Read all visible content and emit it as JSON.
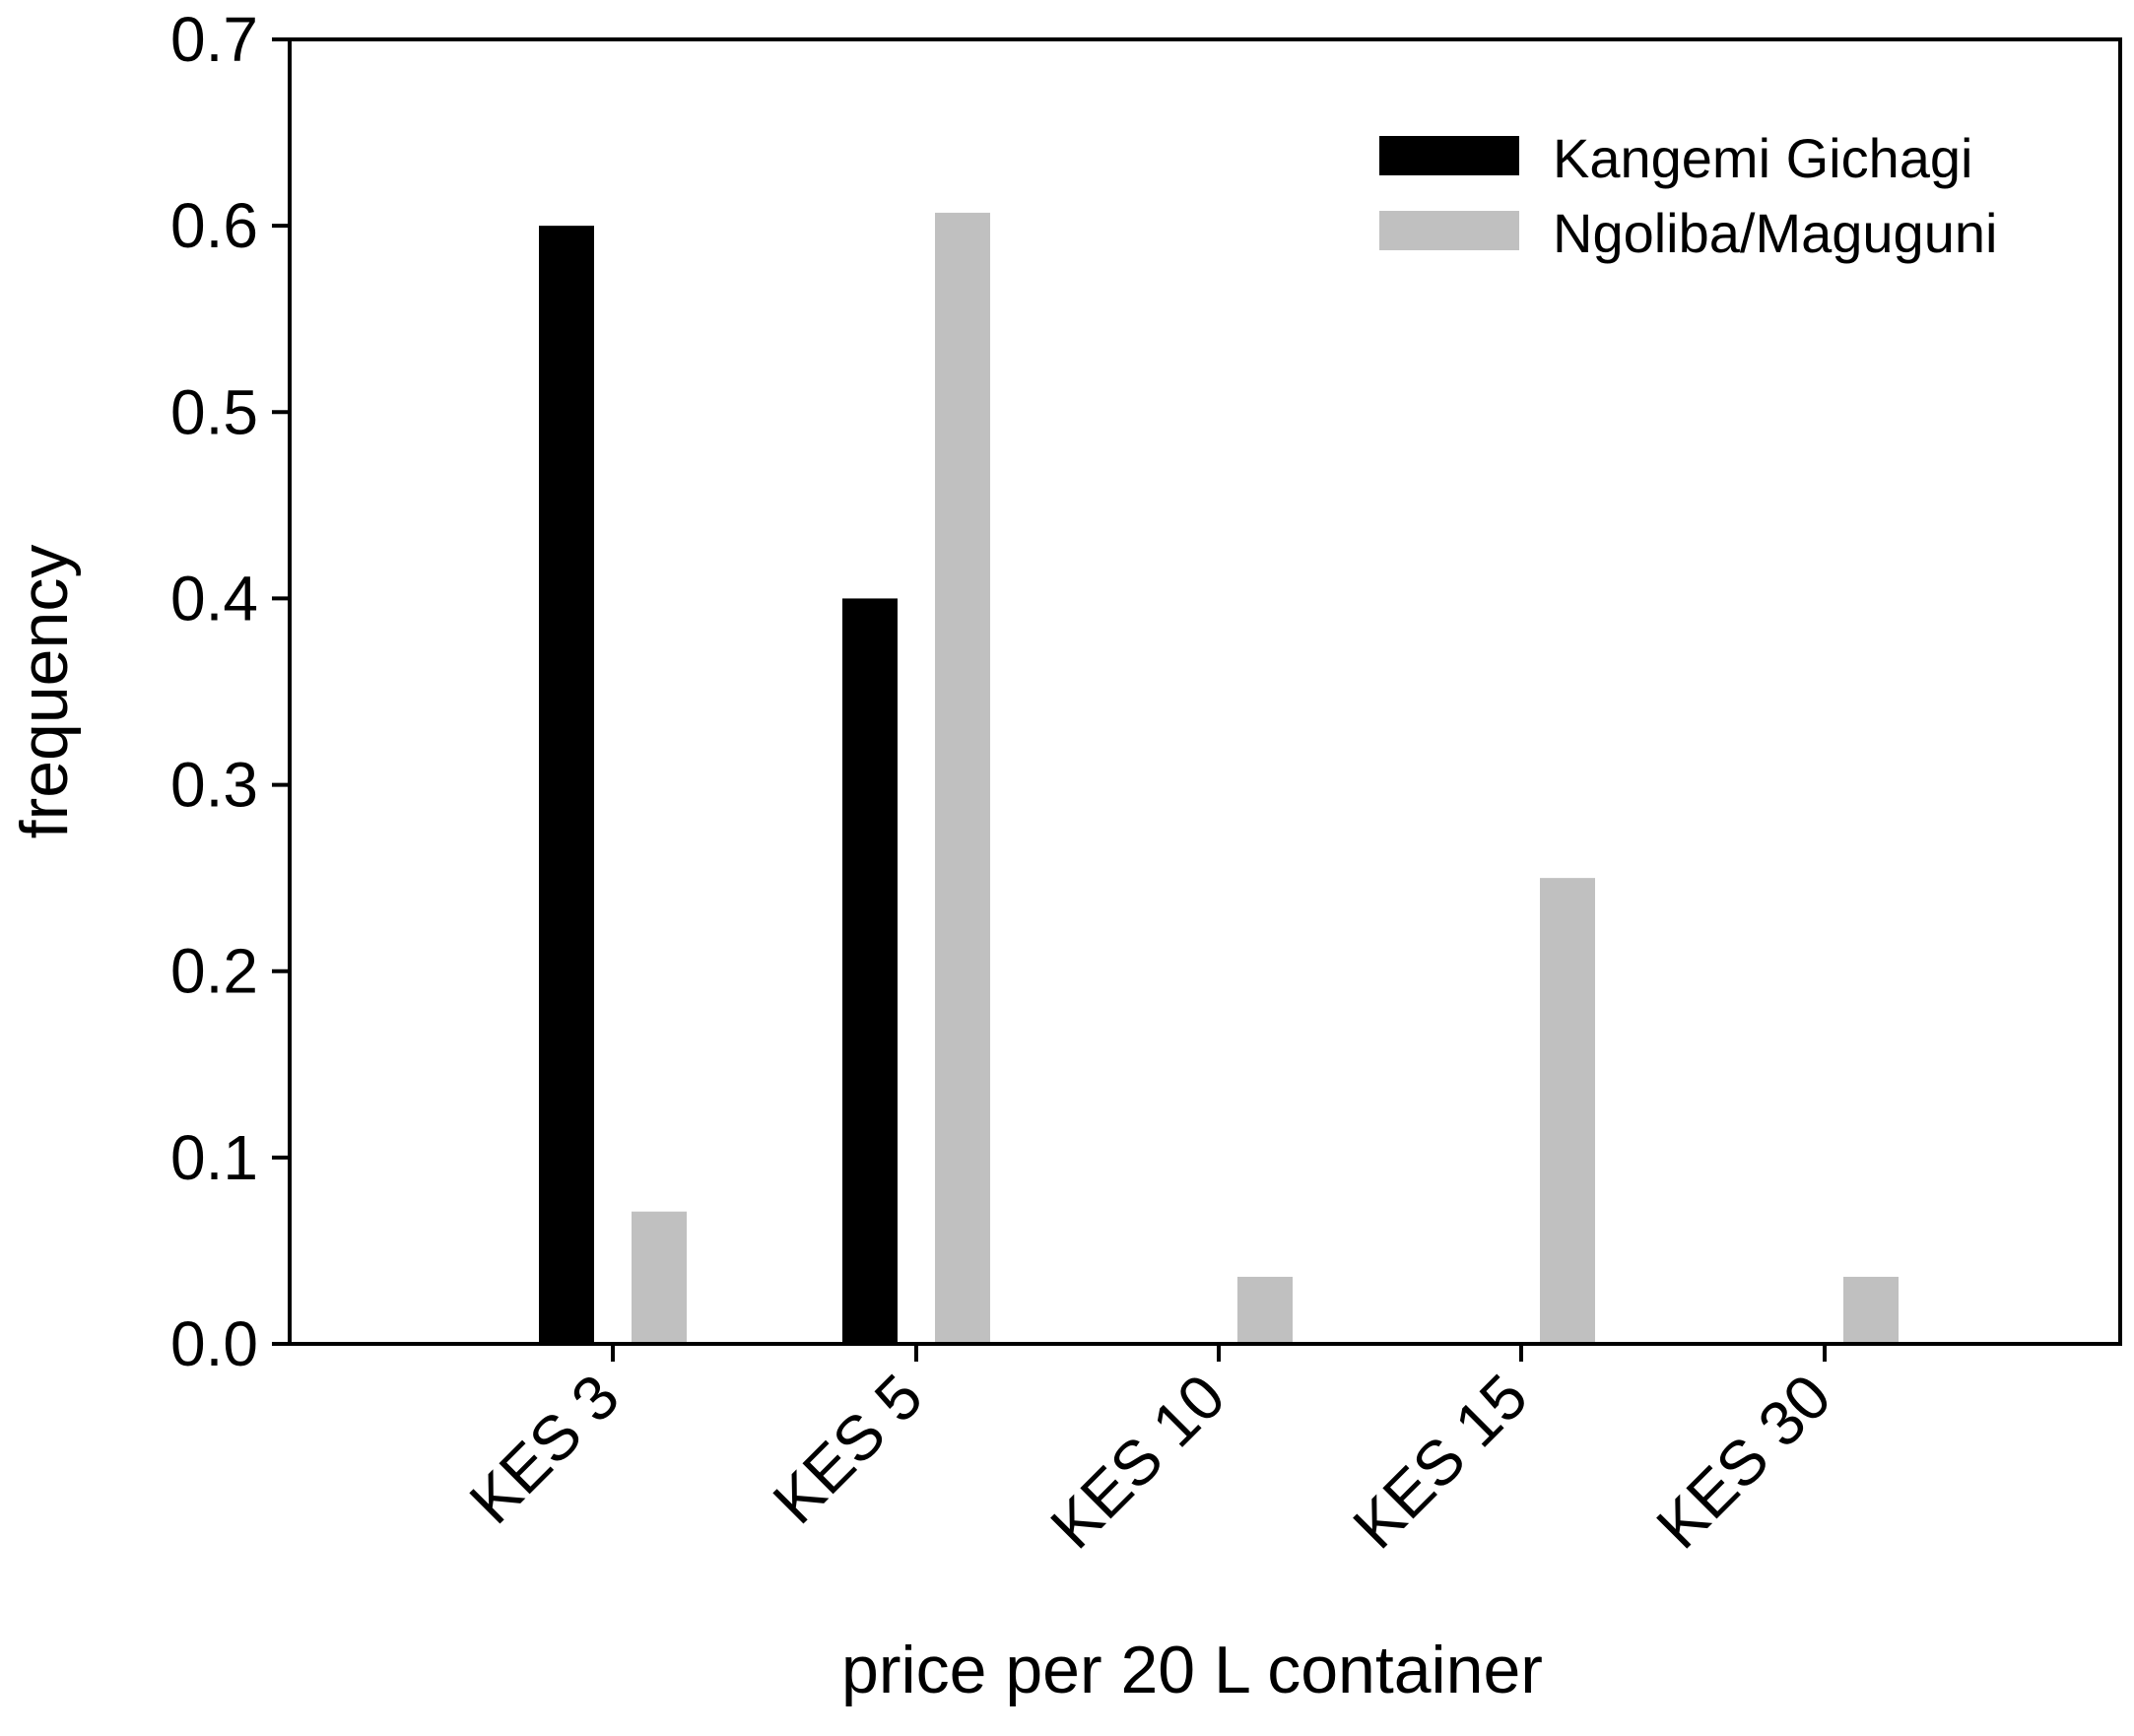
{
  "chart_data": {
    "type": "bar",
    "title": "",
    "xlabel": "price per 20 L container",
    "ylabel": "frequency",
    "categories": [
      "KES 3",
      "KES 5",
      "KES 10",
      "KES 15",
      "KES 30"
    ],
    "ylim": [
      0.0,
      0.7
    ],
    "yticks": [
      "0.0",
      "0.1",
      "0.2",
      "0.3",
      "0.4",
      "0.5",
      "0.6",
      "0.7"
    ],
    "grid": false,
    "legend_position": "top-right",
    "series": [
      {
        "name": "Kangemi Gichagi",
        "color": "#000000",
        "values": [
          0.6,
          0.4,
          0.0,
          0.0,
          0.0
        ]
      },
      {
        "name": "Ngoliba/Maguguni",
        "color": "#c0c0c0",
        "values": [
          0.071,
          0.607,
          0.036,
          0.25,
          0.036
        ]
      }
    ]
  }
}
